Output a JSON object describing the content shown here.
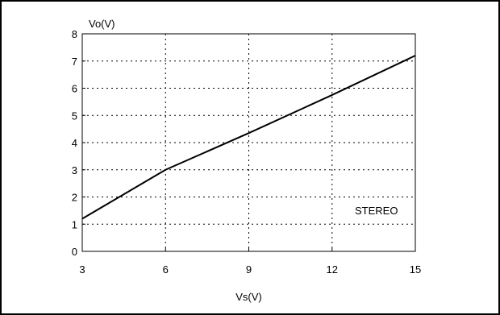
{
  "chart_data": {
    "type": "line",
    "title": "",
    "xlabel": "Vs(V)",
    "ylabel": "Vo(V)",
    "xlim": [
      3,
      15
    ],
    "ylim": [
      0,
      8
    ],
    "x_ticks": [
      3,
      6,
      9,
      12,
      15
    ],
    "y_ticks": [
      0,
      1,
      2,
      3,
      4,
      5,
      6,
      7,
      8
    ],
    "grid": true,
    "grid_style": "dotted",
    "annotation": "STEREO",
    "series": [
      {
        "x": [
          3,
          6,
          9,
          12,
          15
        ],
        "y": [
          1.2,
          3.0,
          4.35,
          5.75,
          7.2
        ]
      }
    ]
  }
}
